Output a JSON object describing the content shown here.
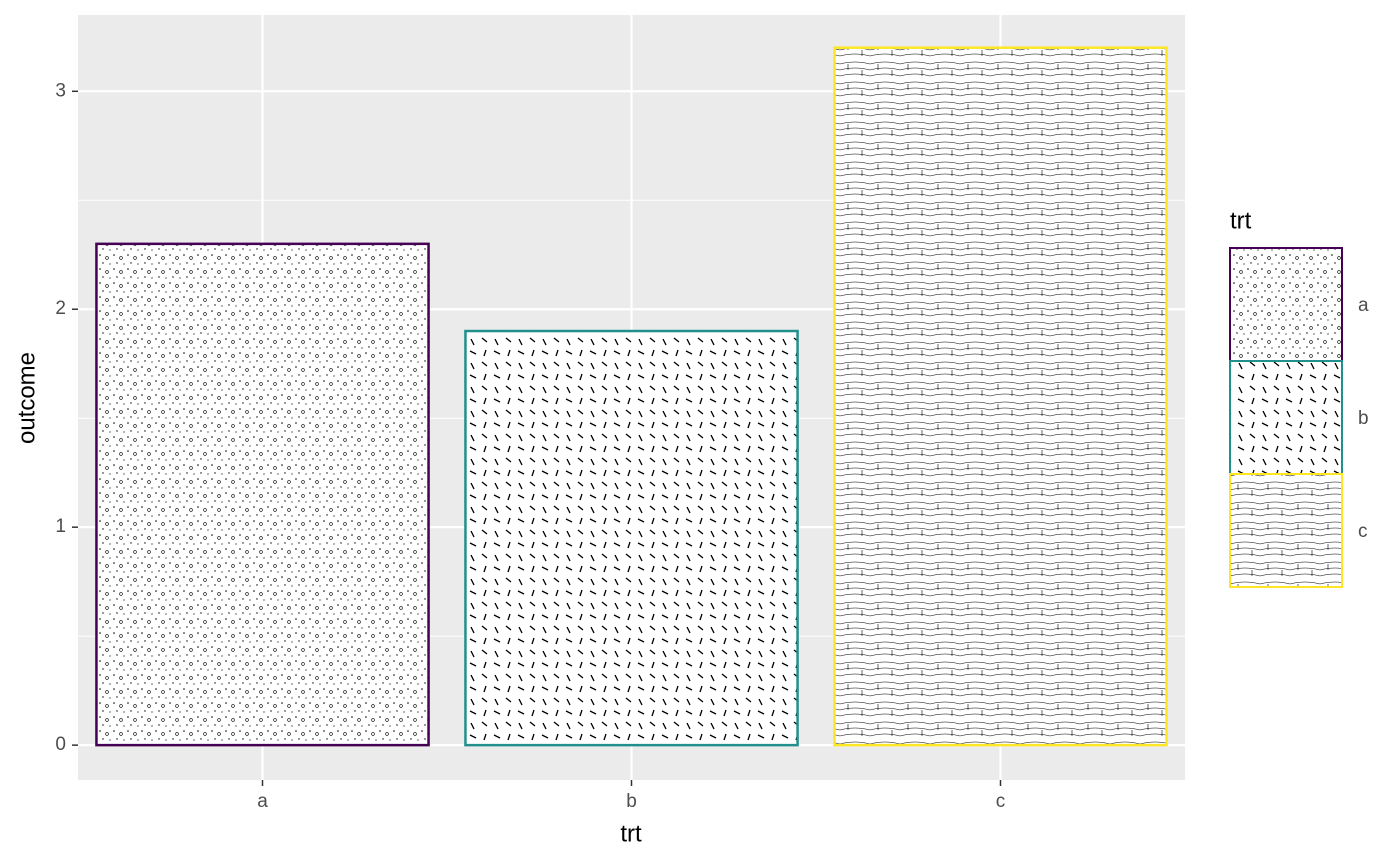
{
  "chart_data": {
    "type": "bar",
    "x_label": "trt",
    "y_label": "outcome",
    "categories": [
      "a",
      "b",
      "c"
    ],
    "values": [
      2.3,
      1.9,
      3.2
    ],
    "colors": [
      "#440154",
      "#21908C",
      "#FDE725"
    ],
    "legend": {
      "title": "trt",
      "position": "right"
    },
    "ylim": [
      -0.16,
      3.35
    ],
    "yticks": [
      0,
      1,
      2,
      3
    ],
    "yminor": [
      0.5,
      1.5,
      2.5
    ],
    "grid": true
  }
}
